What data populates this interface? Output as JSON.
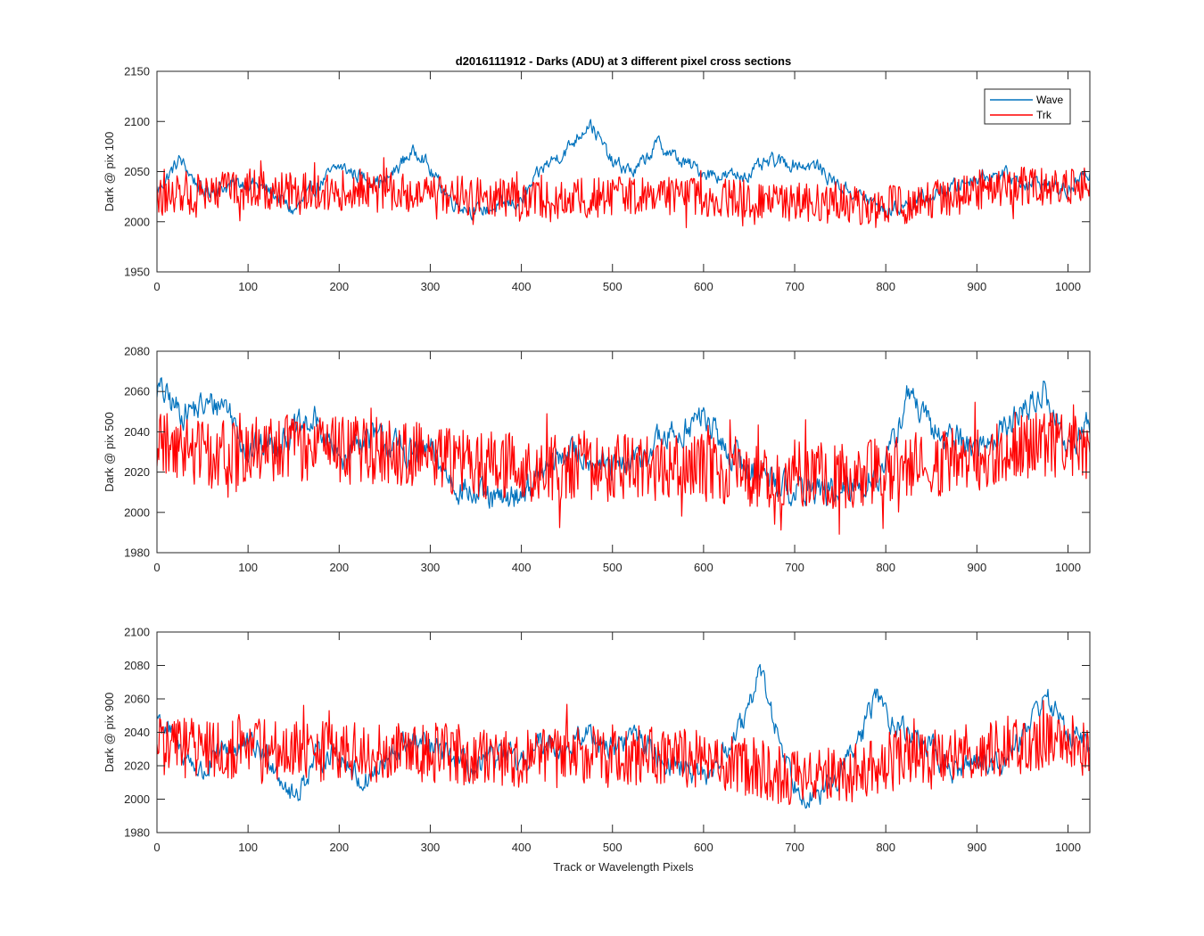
{
  "figure": {
    "title": "d2016111912 - Darks (ADU) at 3 different pixel cross sections",
    "xlabel": "Track or Wavelength Pixels"
  },
  "legend": {
    "placement": "top-right of first panel",
    "entries": [
      {
        "name": "Wave",
        "color": "#0072BD"
      },
      {
        "name": "Trk",
        "color": "#FF0000"
      }
    ]
  },
  "chart_data": [
    {
      "type": "line",
      "ylabel": "Dark @ pix 100",
      "xlim": [
        0,
        1024
      ],
      "ylim": [
        1950,
        2150
      ],
      "xticks": [
        0,
        100,
        200,
        300,
        400,
        500,
        600,
        700,
        800,
        900,
        1000
      ],
      "yticks": [
        1950,
        2000,
        2050,
        2100,
        2150
      ],
      "series": [
        {
          "name": "Wave",
          "color": "#0072BD",
          "x": [
            0,
            25,
            50,
            75,
            100,
            125,
            150,
            175,
            200,
            225,
            250,
            275,
            290,
            300,
            325,
            350,
            375,
            400,
            425,
            450,
            475,
            500,
            525,
            550,
            575,
            600,
            625,
            650,
            675,
            700,
            725,
            750,
            775,
            800,
            825,
            850,
            875,
            900,
            925,
            950,
            975,
            1000,
            1024
          ],
          "values": [
            2030,
            2062,
            2030,
            2035,
            2040,
            2030,
            2010,
            2035,
            2055,
            2045,
            2038,
            2066,
            2070,
            2050,
            2020,
            2010,
            2015,
            2020,
            2055,
            2072,
            2100,
            2058,
            2050,
            2078,
            2060,
            2050,
            2045,
            2048,
            2060,
            2058,
            2055,
            2035,
            2025,
            2010,
            2018,
            2025,
            2035,
            2045,
            2048,
            2040,
            2038,
            2030,
            2050
          ]
        },
        {
          "name": "Trk",
          "color": "#FF0000",
          "x": [
            0,
            50,
            100,
            150,
            200,
            250,
            300,
            350,
            400,
            450,
            500,
            550,
            600,
            650,
            700,
            750,
            800,
            850,
            900,
            950,
            1000,
            1024
          ],
          "values": [
            2025,
            2028,
            2032,
            2030,
            2031,
            2030,
            2028,
            2025,
            2024,
            2023,
            2025,
            2026,
            2024,
            2022,
            2020,
            2018,
            2016,
            2020,
            2032,
            2036,
            2036,
            2038
          ],
          "noise_amplitude": 20
        }
      ]
    },
    {
      "type": "line",
      "ylabel": "Dark @ pix 500",
      "xlim": [
        0,
        1024
      ],
      "ylim": [
        1980,
        2080
      ],
      "xticks": [
        0,
        100,
        200,
        300,
        400,
        500,
        600,
        700,
        800,
        900,
        1000
      ],
      "yticks": [
        1980,
        2000,
        2020,
        2040,
        2060,
        2080
      ],
      "series": [
        {
          "name": "Wave",
          "color": "#0072BD",
          "x": [
            0,
            25,
            50,
            75,
            100,
            125,
            150,
            175,
            200,
            225,
            250,
            275,
            300,
            325,
            350,
            375,
            400,
            425,
            450,
            475,
            500,
            525,
            550,
            575,
            600,
            625,
            650,
            675,
            700,
            725,
            750,
            775,
            800,
            825,
            850,
            875,
            900,
            925,
            950,
            975,
            1000,
            1024
          ],
          "values": [
            2062,
            2050,
            2052,
            2055,
            2030,
            2035,
            2040,
            2045,
            2025,
            2038,
            2035,
            2030,
            2030,
            2015,
            2008,
            2005,
            2010,
            2020,
            2030,
            2028,
            2020,
            2025,
            2035,
            2040,
            2048,
            2030,
            2022,
            2018,
            2010,
            2012,
            2008,
            2015,
            2022,
            2060,
            2040,
            2038,
            2032,
            2040,
            2050,
            2060,
            2030,
            2045
          ]
        },
        {
          "name": "Trk",
          "color": "#FF0000",
          "x": [
            0,
            50,
            100,
            150,
            200,
            250,
            300,
            350,
            400,
            450,
            500,
            550,
            600,
            650,
            700,
            750,
            800,
            850,
            900,
            950,
            1000,
            1024
          ],
          "values": [
            2035,
            2028,
            2030,
            2032,
            2031,
            2030,
            2028,
            2024,
            2022,
            2022,
            2022,
            2021,
            2022,
            2020,
            2019,
            2018,
            2020,
            2024,
            2028,
            2034,
            2032,
            2030
          ],
          "noise_amplitude": 17
        }
      ]
    },
    {
      "type": "line",
      "ylabel": "Dark @ pix 900",
      "xlim": [
        0,
        1024
      ],
      "ylim": [
        1980,
        2100
      ],
      "xticks": [
        0,
        100,
        200,
        300,
        400,
        500,
        600,
        700,
        800,
        900,
        1000
      ],
      "yticks": [
        1980,
        2000,
        2020,
        2040,
        2060,
        2080,
        2100
      ],
      "series": [
        {
          "name": "Wave",
          "color": "#0072BD",
          "x": [
            0,
            25,
            50,
            75,
            100,
            125,
            150,
            175,
            200,
            225,
            250,
            275,
            300,
            325,
            350,
            375,
            400,
            425,
            450,
            475,
            500,
            525,
            550,
            575,
            600,
            625,
            650,
            660,
            675,
            700,
            725,
            750,
            775,
            790,
            800,
            825,
            850,
            875,
            900,
            925,
            950,
            975,
            1000,
            1024
          ],
          "values": [
            2050,
            2030,
            2015,
            2030,
            2032,
            2025,
            2000,
            2025,
            2028,
            2010,
            2020,
            2035,
            2030,
            2025,
            2015,
            2028,
            2020,
            2035,
            2030,
            2040,
            2030,
            2040,
            2025,
            2020,
            2010,
            2030,
            2050,
            2082,
            2050,
            2010,
            2000,
            2015,
            2040,
            2065,
            2050,
            2040,
            2030,
            2015,
            2025,
            2020,
            2040,
            2062,
            2040,
            2032
          ]
        },
        {
          "name": "Trk",
          "color": "#FF0000",
          "x": [
            0,
            50,
            100,
            150,
            200,
            250,
            300,
            350,
            400,
            450,
            500,
            550,
            600,
            650,
            700,
            750,
            800,
            850,
            900,
            950,
            1000,
            1024
          ],
          "values": [
            2032,
            2030,
            2030,
            2030,
            2029,
            2028,
            2028,
            2026,
            2024,
            2025,
            2027,
            2026,
            2024,
            2020,
            2012,
            2014,
            2022,
            2028,
            2030,
            2033,
            2034,
            2030
          ],
          "noise_amplitude": 18
        }
      ]
    }
  ]
}
